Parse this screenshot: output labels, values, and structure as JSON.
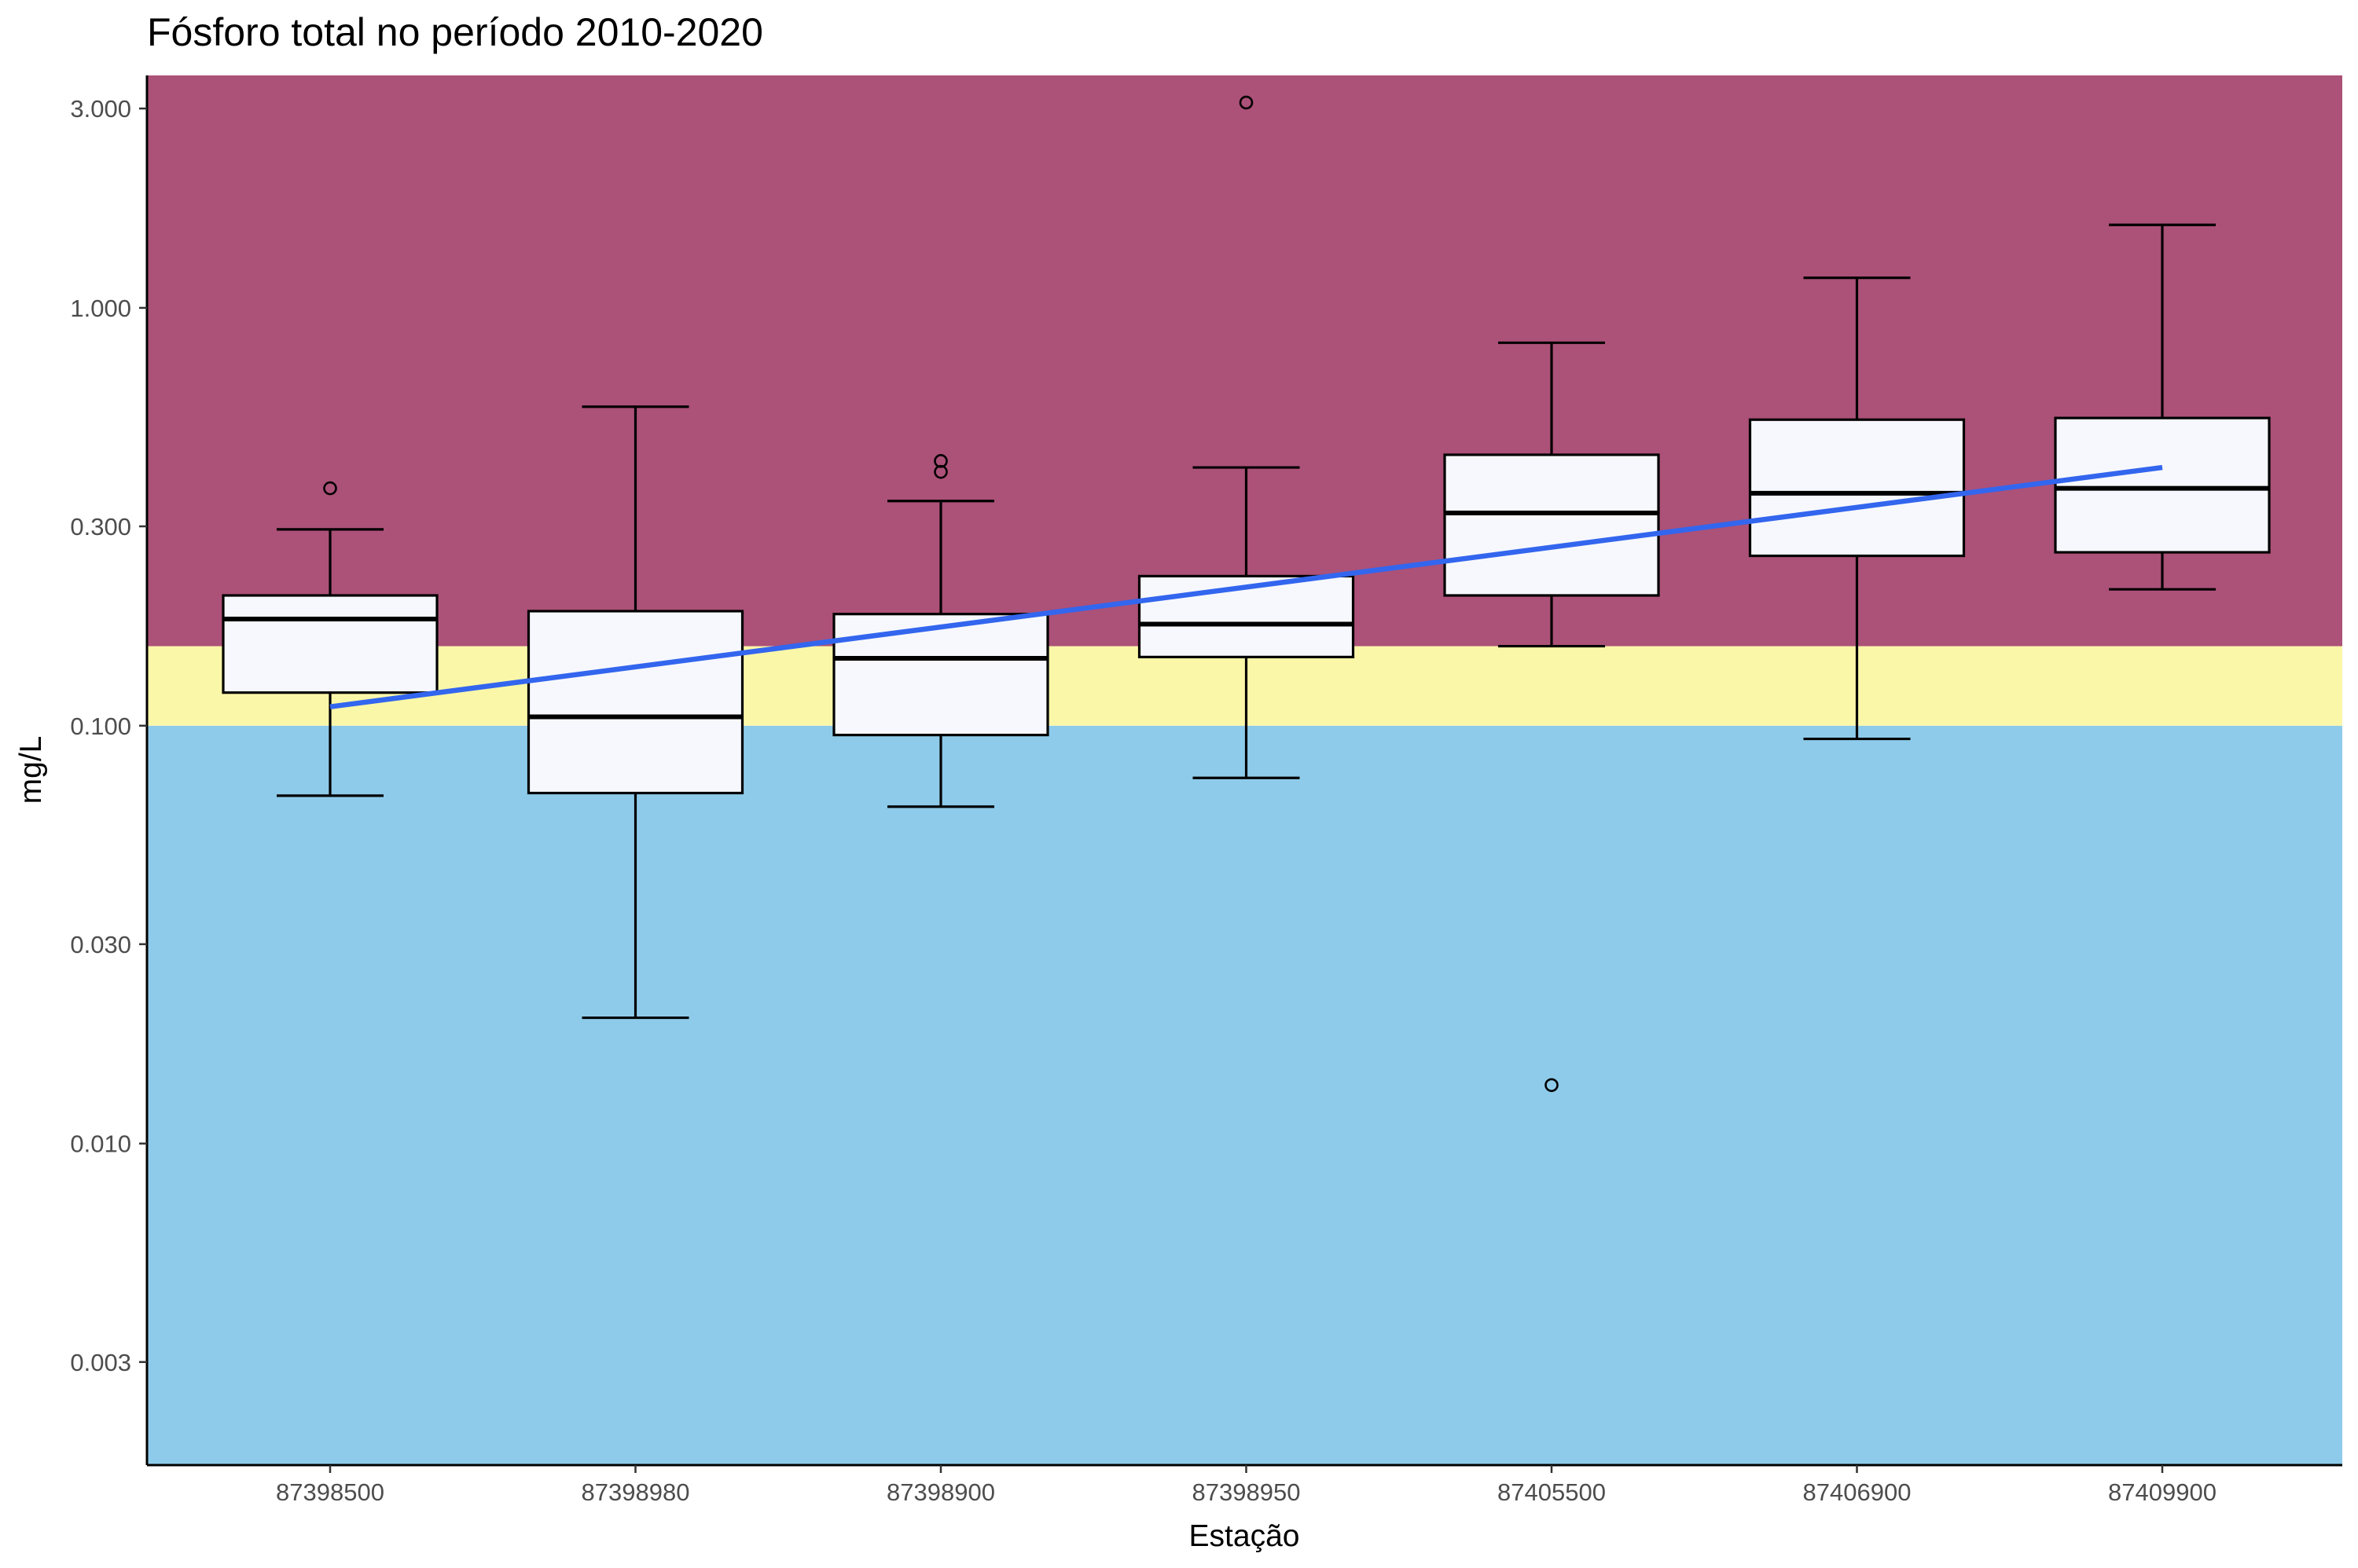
{
  "chart_data": {
    "type": "boxplot",
    "title": "Fósforo total no período 2010-2020",
    "xlabel": "Estação",
    "ylabel": "mg/L",
    "y_scale": "log10",
    "ylim": [
      0.0017,
      3.6
    ],
    "y_ticks": [
      0.003,
      0.01,
      0.03,
      0.1,
      0.3,
      1,
      3
    ],
    "y_tick_labels": [
      "0.003",
      "0.010",
      "0.030",
      "0.100",
      "0.300",
      "1.000",
      "3.000"
    ],
    "background_bands": [
      {
        "from": 0.0017,
        "to": 0.1,
        "color": "#8ecbea"
      },
      {
        "from": 0.1,
        "to": 0.155,
        "color": "#fbf7a9"
      },
      {
        "from": 0.155,
        "to": 3.6,
        "color": "#ac5178"
      }
    ],
    "box_fill": "#f7f8fd",
    "trend_color": "#3366ee",
    "categories": [
      "87398500",
      "87398980",
      "87398900",
      "87398950",
      "87405500",
      "87406900",
      "87409900"
    ],
    "boxes": [
      {
        "station": "87398500",
        "whisker_low": 0.068,
        "q1": 0.12,
        "median": 0.18,
        "q3": 0.205,
        "whisker_high": 0.295,
        "outliers": [
          0.37
        ]
      },
      {
        "station": "87398980",
        "whisker_low": 0.02,
        "q1": 0.069,
        "median": 0.105,
        "q3": 0.188,
        "whisker_high": 0.58,
        "outliers": []
      },
      {
        "station": "87398900",
        "whisker_low": 0.064,
        "q1": 0.095,
        "median": 0.145,
        "q3": 0.185,
        "whisker_high": 0.345,
        "outliers": [
          0.43,
          0.405
        ]
      },
      {
        "station": "87398950",
        "whisker_low": 0.075,
        "q1": 0.146,
        "median": 0.175,
        "q3": 0.228,
        "whisker_high": 0.415,
        "outliers": [
          3.1
        ]
      },
      {
        "station": "87405500",
        "whisker_low": 0.155,
        "q1": 0.205,
        "median": 0.323,
        "q3": 0.445,
        "whisker_high": 0.825,
        "outliers": [
          0.0138
        ]
      },
      {
        "station": "87406900",
        "whisker_low": 0.093,
        "q1": 0.255,
        "median": 0.36,
        "q3": 0.54,
        "whisker_high": 1.18,
        "outliers": []
      },
      {
        "station": "87409900",
        "whisker_low": 0.212,
        "q1": 0.26,
        "median": 0.37,
        "q3": 0.545,
        "whisker_high": 1.58,
        "outliers": []
      }
    ],
    "trend_line": {
      "x_from": "87398500",
      "x_to": "87409900",
      "y_from": 0.111,
      "y_to": 0.415
    },
    "grid": false,
    "legend": "none"
  }
}
